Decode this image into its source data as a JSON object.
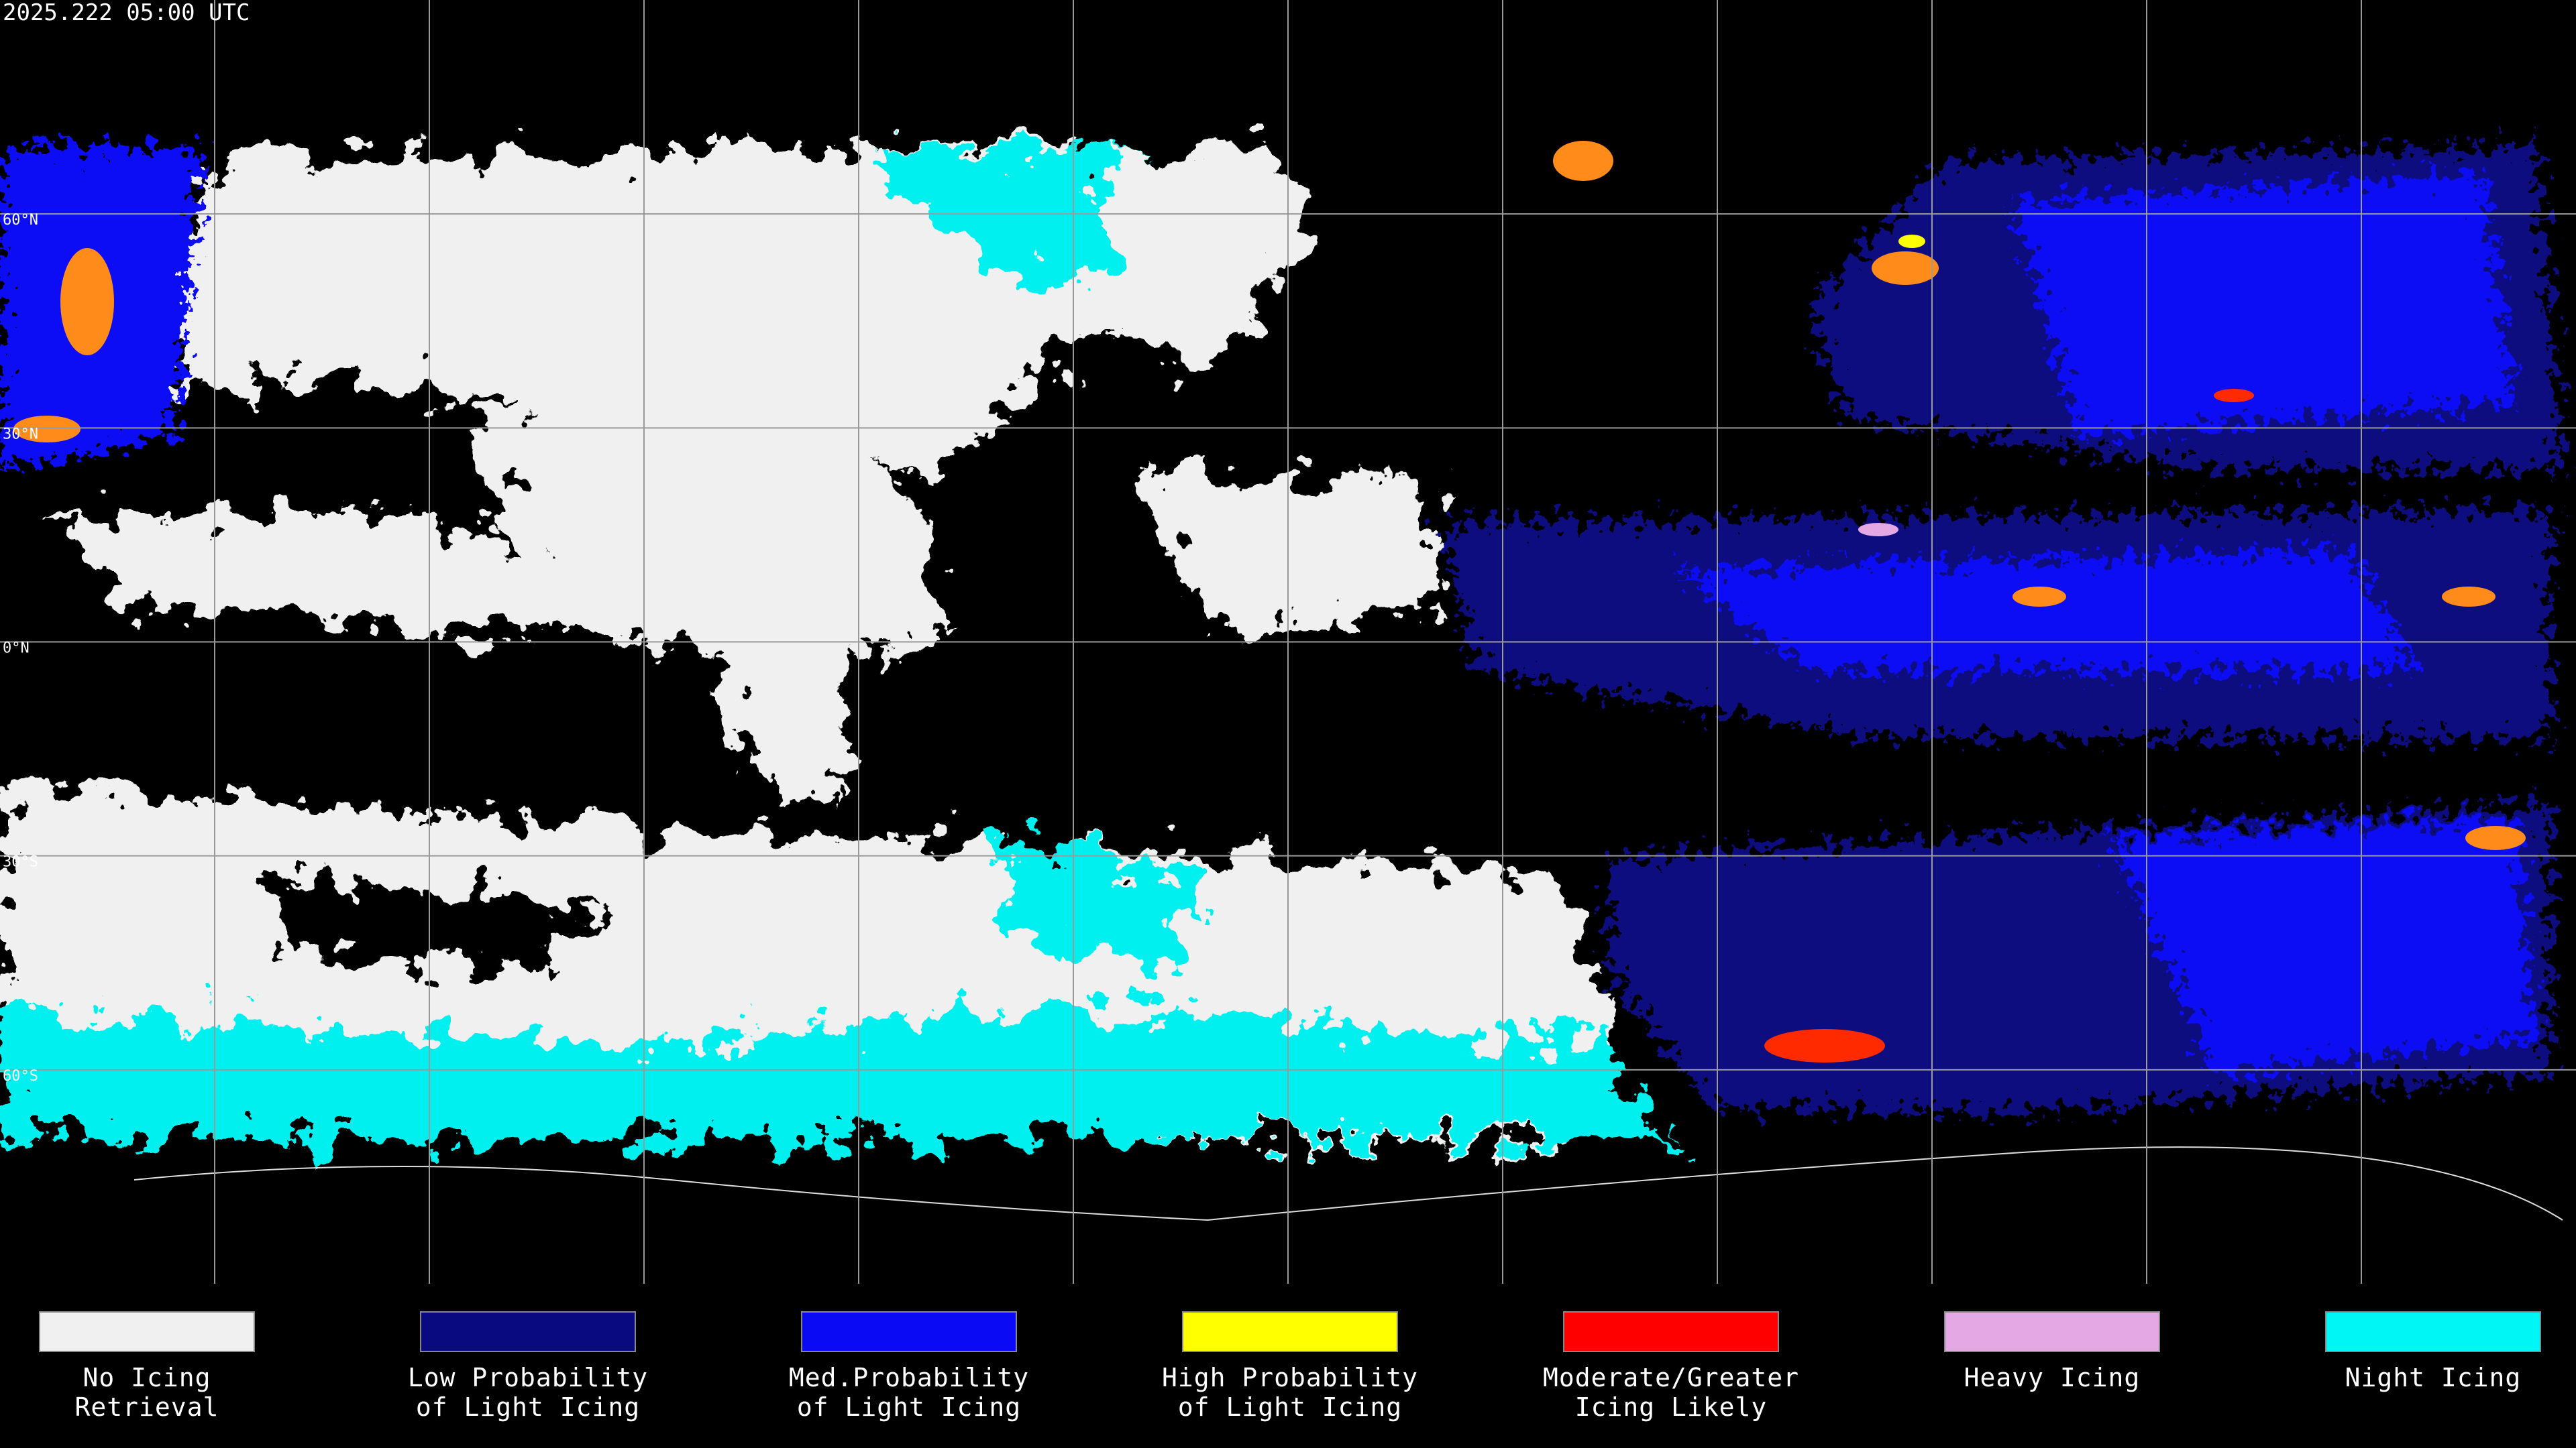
{
  "header": {
    "title": "2025.222 05:00 UTC"
  },
  "latitude_labels": [
    "60°N",
    "30°N",
    "0°N",
    "30°S",
    "60°S"
  ],
  "legend": [
    {
      "color": "#f0f0f0",
      "label_lines": [
        "No Icing",
        "Retrieval"
      ]
    },
    {
      "color": "#0a0a80",
      "label_lines": [
        "Low Probability",
        "of Light Icing"
      ]
    },
    {
      "color": "#0a0af5",
      "label_lines": [
        "Med.Probability",
        "of Light Icing"
      ]
    },
    {
      "color": "#ffff00",
      "label_lines": [
        "High Probability",
        "of Light Icing"
      ]
    },
    {
      "color": "#ff0000",
      "label_lines": [
        "Moderate/Greater",
        "Icing Likely"
      ]
    },
    {
      "color": "#e4a8e4",
      "label_lines": [
        "Heavy Icing"
      ]
    },
    {
      "color": "#00f5f5",
      "label_lines": [
        "Night Icing"
      ]
    }
  ]
}
